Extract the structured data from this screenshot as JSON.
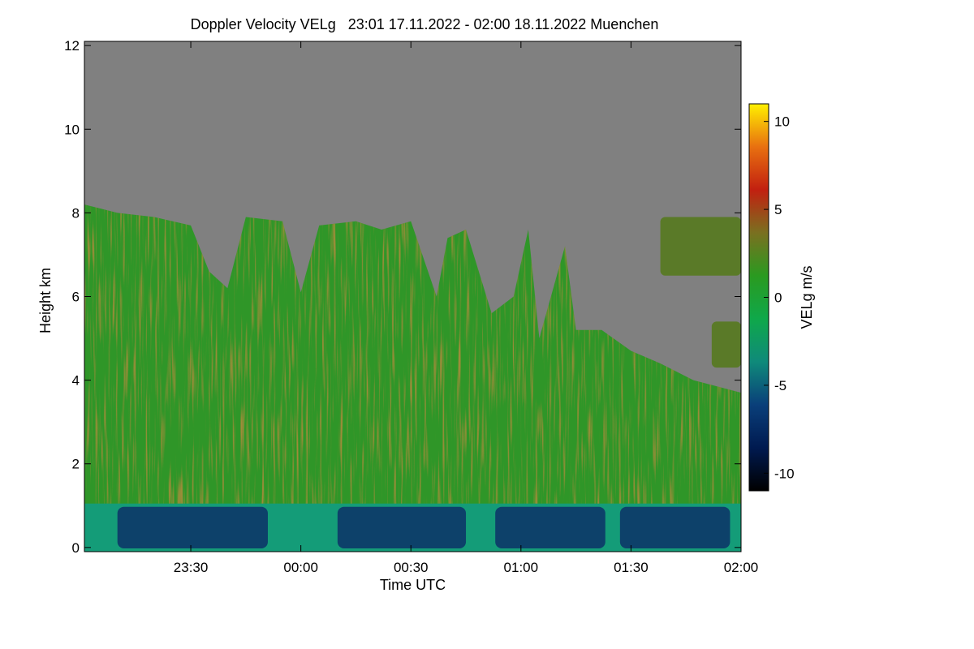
{
  "chart_data": {
    "type": "heatmap",
    "title": "Doppler Velocity VELg   23:01 17.11.2022 - 02:00 18.11.2022 Muenchen",
    "xlabel": "Time UTC",
    "ylabel": "Height km",
    "colorbar_label": "VELg m/s",
    "x_range_minutes_after_2300": [
      1,
      180
    ],
    "x_ticks": [
      {
        "label": "23:30",
        "minutes": 30
      },
      {
        "label": "00:00",
        "minutes": 60
      },
      {
        "label": "00:30",
        "minutes": 90
      },
      {
        "label": "01:00",
        "minutes": 120
      },
      {
        "label": "01:30",
        "minutes": 150
      },
      {
        "label": "02:00",
        "minutes": 180
      }
    ],
    "y_range_km": [
      -0.1,
      12.1
    ],
    "y_ticks": [
      0,
      2,
      4,
      6,
      8,
      10,
      12
    ],
    "colorbar_range": [
      -11,
      11
    ],
    "colorbar_ticks": [
      10,
      5,
      0,
      -5,
      -10
    ],
    "colormap": [
      "#000000",
      "#001a50",
      "#0a3f7a",
      "#0f8a7a",
      "#0fa84a",
      "#2a9a20",
      "#7a7020",
      "#c22010",
      "#e87010",
      "#fff000"
    ],
    "no_data_color": "#808080",
    "cloud_top_profile": [
      {
        "t": 1,
        "h": 8.2
      },
      {
        "t": 10,
        "h": 8.0
      },
      {
        "t": 20,
        "h": 7.9
      },
      {
        "t": 30,
        "h": 7.7
      },
      {
        "t": 35,
        "h": 6.6
      },
      {
        "t": 40,
        "h": 6.2
      },
      {
        "t": 45,
        "h": 7.9
      },
      {
        "t": 55,
        "h": 7.8
      },
      {
        "t": 60,
        "h": 6.1
      },
      {
        "t": 65,
        "h": 7.7
      },
      {
        "t": 75,
        "h": 7.8
      },
      {
        "t": 82,
        "h": 7.6
      },
      {
        "t": 90,
        "h": 7.8
      },
      {
        "t": 97,
        "h": 6.0
      },
      {
        "t": 100,
        "h": 7.4
      },
      {
        "t": 105,
        "h": 7.6
      },
      {
        "t": 112,
        "h": 5.6
      },
      {
        "t": 118,
        "h": 6.0
      },
      {
        "t": 122,
        "h": 7.6
      },
      {
        "t": 125,
        "h": 5.0
      },
      {
        "t": 132,
        "h": 7.2
      },
      {
        "t": 135,
        "h": 5.2
      },
      {
        "t": 142,
        "h": 5.2
      },
      {
        "t": 150,
        "h": 4.7
      },
      {
        "t": 158,
        "h": 4.4
      },
      {
        "t": 167,
        "h": 4.0
      },
      {
        "t": 180,
        "h": 3.7
      }
    ],
    "upper_cloud_patches": [
      {
        "t_start": 158,
        "t_end": 180,
        "h_bottom": 6.5,
        "h_top": 7.9
      },
      {
        "t_start": 172,
        "t_end": 180,
        "h_bottom": 4.3,
        "h_top": 5.4
      }
    ],
    "boundary_layer_top_km": 1.05,
    "strong_downdraft_intervals": [
      {
        "t_start": 10,
        "t_end": 51
      },
      {
        "t_start": 70,
        "t_end": 105
      },
      {
        "t_start": 113,
        "t_end": 143
      },
      {
        "t_start": 147,
        "t_end": 177
      }
    ]
  }
}
